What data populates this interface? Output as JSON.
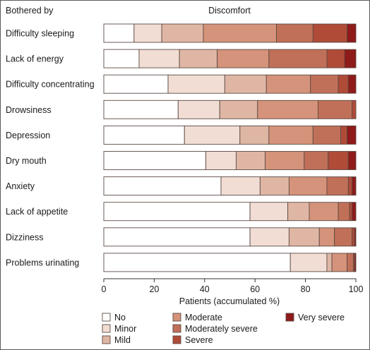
{
  "chart_data": {
    "type": "bar",
    "orientation": "horizontal",
    "stacked": true,
    "title": "Discomfort",
    "category_header": "Bothered by",
    "xlabel": "Patients (accumulated %)",
    "ylabel": "",
    "xlim": [
      0,
      100
    ],
    "xticks": [
      0,
      20,
      40,
      60,
      80,
      100
    ],
    "grid": false,
    "legend_position": "bottom",
    "categories": [
      "Difficulty sleeping",
      "Lack of energy",
      "Difficulty concentrating",
      "Drowsiness",
      "Depression",
      "Dry mouth",
      "Anxiety",
      "Lack of appetite",
      "Dizziness",
      "Problems urinating"
    ],
    "series": [
      {
        "name": "No",
        "color": "#ffffff",
        "values": [
          12,
          14,
          25.5,
          29.5,
          32,
          40.5,
          46.5,
          58,
          58,
          74
        ]
      },
      {
        "name": "Minor",
        "color": "#f1ddd4",
        "values": [
          11,
          16,
          22.5,
          16.5,
          22,
          12,
          15.5,
          15,
          15.5,
          14.5
        ]
      },
      {
        "name": "Mild",
        "color": "#dfb6a4",
        "values": [
          16.5,
          15,
          16.5,
          15,
          11.5,
          11.5,
          11.5,
          8.5,
          12,
          2
        ]
      },
      {
        "name": "Moderate",
        "color": "#d4937a",
        "values": [
          29,
          20.5,
          17.5,
          24,
          17.5,
          15.5,
          15,
          11.5,
          6,
          6
        ]
      },
      {
        "name": "Moderately severe",
        "color": "#c07058",
        "values": [
          14.5,
          23,
          11,
          13.5,
          11,
          9.5,
          8.5,
          4.5,
          7,
          2.5
        ]
      },
      {
        "name": "Severe",
        "color": "#b04b38",
        "values": [
          13.5,
          7,
          4,
          1.5,
          2.5,
          8,
          1.5,
          1,
          1,
          0.5
        ]
      },
      {
        "name": "Very severe",
        "color": "#8e1a1a",
        "values": [
          3.5,
          4.5,
          3,
          0,
          3.5,
          3,
          1.5,
          1.5,
          0.5,
          0.5
        ]
      }
    ]
  }
}
